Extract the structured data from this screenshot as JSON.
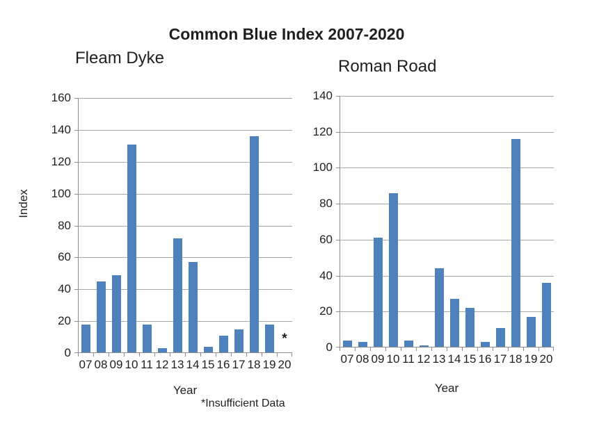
{
  "title": "Common Blue Index 2007-2020",
  "footnote": "*Insufficient Data",
  "colors": {
    "bar": "#4f81bd",
    "gridline": "#a6a6a6",
    "axis": "#8c8c8c",
    "text": "#1f1f1f"
  },
  "chart_data": [
    {
      "type": "bar",
      "title": "Fleam Dyke",
      "xlabel": "Year",
      "ylabel": "Index",
      "ylim": [
        0,
        160
      ],
      "ytick_step": 20,
      "grid": true,
      "legend": false,
      "categories": [
        "07",
        "08",
        "09",
        "10",
        "11",
        "12",
        "13",
        "14",
        "15",
        "16",
        "17",
        "18",
        "19",
        "20"
      ],
      "values": [
        18,
        45,
        49,
        131,
        18,
        3,
        72,
        57,
        4,
        11,
        15,
        136,
        18,
        null
      ],
      "annotations": [
        {
          "category": "20",
          "text": "*"
        }
      ]
    },
    {
      "type": "bar",
      "title": "Roman Road",
      "xlabel": "Year",
      "ylabel": "",
      "ylim": [
        0,
        140
      ],
      "ytick_step": 20,
      "grid": true,
      "legend": false,
      "categories": [
        "07",
        "08",
        "09",
        "10",
        "11",
        "12",
        "13",
        "14",
        "15",
        "16",
        "17",
        "18",
        "19",
        "20"
      ],
      "values": [
        4,
        3,
        61,
        86,
        4,
        1,
        44,
        27,
        22,
        3,
        11,
        116,
        17,
        36
      ]
    }
  ]
}
